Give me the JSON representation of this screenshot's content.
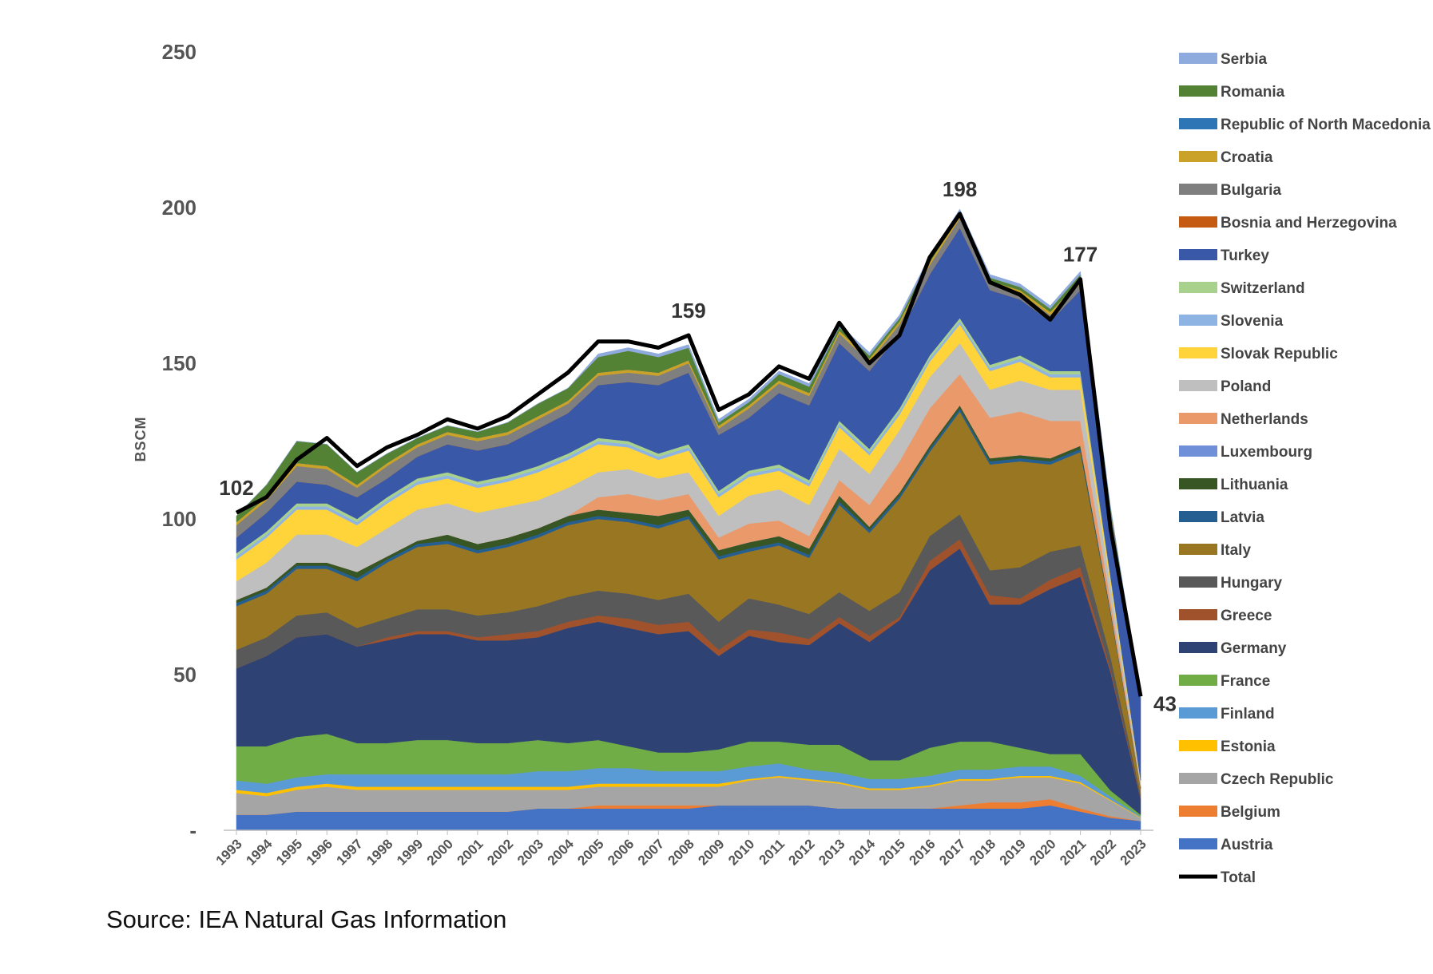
{
  "chart_data": {
    "type": "area",
    "stacked": true,
    "ylabel": "BSCM",
    "ylim": [
      0,
      250
    ],
    "yticks": [
      "-",
      "50",
      "100",
      "150",
      "200",
      "250"
    ],
    "grid": false,
    "legend_position": "right",
    "x": [
      "1993",
      "1994",
      "1995",
      "1996",
      "1997",
      "1998",
      "1999",
      "2000",
      "2001",
      "2002",
      "2003",
      "2004",
      "2005",
      "2006",
      "2007",
      "2008",
      "2009",
      "2010",
      "2011",
      "2012",
      "2013",
      "2014",
      "2015",
      "2016",
      "2017",
      "2018",
      "2019",
      "2020",
      "2021",
      "2022",
      "2023"
    ],
    "series": [
      {
        "name": "Austria",
        "color": "#4472C4",
        "values": [
          5,
          5,
          6,
          6,
          6,
          6,
          6,
          6,
          6,
          6,
          7,
          7,
          7,
          7,
          7,
          7,
          8,
          8,
          8,
          8,
          7,
          7,
          7,
          7,
          7,
          7,
          7,
          8,
          6,
          4,
          3
        ]
      },
      {
        "name": "Belgium",
        "color": "#ED7D31",
        "values": [
          0,
          0,
          0,
          0,
          0,
          0,
          0,
          0,
          0,
          0,
          0,
          0,
          1,
          1,
          1,
          1,
          0,
          0,
          0,
          0,
          0,
          0,
          0,
          0,
          1,
          2,
          2,
          2,
          1,
          0.5,
          0
        ]
      },
      {
        "name": "Czech Republic",
        "color": "#A5A5A5",
        "values": [
          7,
          6,
          7,
          8,
          7,
          7,
          7,
          7,
          7,
          7,
          6,
          6,
          6,
          6,
          6,
          6,
          6,
          8,
          9,
          8,
          8,
          6,
          6,
          7,
          8,
          7,
          8,
          7,
          8,
          5,
          1
        ]
      },
      {
        "name": "Estonia",
        "color": "#FFC000",
        "values": [
          1,
          1,
          1,
          1,
          1,
          1,
          1,
          1,
          1,
          1,
          1,
          1,
          1,
          1,
          1,
          1,
          1,
          0.5,
          0.5,
          0.5,
          0.5,
          0.5,
          0.5,
          0.5,
          0.5,
          0.5,
          0.5,
          0.5,
          0.5,
          0.3,
          0.2
        ]
      },
      {
        "name": "Finland",
        "color": "#5B9BD5",
        "values": [
          3,
          3,
          3,
          3,
          4,
          4,
          4,
          4,
          4,
          4,
          5,
          5,
          5,
          5,
          4,
          4,
          4,
          4,
          4,
          3,
          3,
          3,
          3,
          3,
          3,
          3,
          3,
          3,
          2,
          1,
          0.3
        ]
      },
      {
        "name": "France",
        "color": "#70AD47",
        "values": [
          11,
          12,
          13,
          13,
          10,
          10,
          11,
          11,
          10,
          10,
          10,
          9,
          9,
          7,
          6,
          6,
          7,
          8,
          7,
          8,
          9,
          6,
          6,
          9,
          9,
          9,
          6,
          4,
          7,
          2,
          0.5
        ]
      },
      {
        "name": "Germany",
        "color": "#2E4374",
        "values": [
          25,
          29,
          32,
          32,
          31,
          33,
          34,
          34,
          33,
          33,
          33,
          37,
          38,
          38,
          38,
          39,
          30,
          34,
          32,
          32,
          39,
          38,
          45,
          57,
          62,
          44,
          46,
          53,
          57,
          38,
          5
        ]
      },
      {
        "name": "Greece",
        "color": "#A0522D",
        "values": [
          0,
          0,
          0,
          0,
          0,
          1,
          1,
          1,
          1,
          2,
          2,
          2,
          2,
          3,
          3,
          3,
          2,
          2,
          3,
          2,
          2,
          2,
          1,
          3,
          3,
          3,
          2,
          3,
          3,
          1,
          0.5
        ]
      },
      {
        "name": "Hungary",
        "color": "#595959",
        "values": [
          6,
          6,
          7,
          7,
          6,
          6,
          7,
          7,
          7,
          7,
          8,
          8,
          8,
          8,
          8,
          9,
          9,
          10,
          9,
          8,
          8,
          8,
          8,
          8,
          8,
          8,
          10,
          9,
          7,
          4,
          1
        ]
      },
      {
        "name": "Italy",
        "color": "#997722",
        "values": [
          14,
          14,
          15,
          14,
          15,
          18,
          20,
          21,
          20,
          21,
          22,
          23,
          23,
          23,
          23,
          24,
          20,
          15,
          19,
          18,
          28,
          25,
          30,
          27,
          33,
          34,
          34,
          28,
          30,
          14,
          2
        ]
      },
      {
        "name": "Latvia",
        "color": "#255E91",
        "values": [
          1,
          1,
          1,
          1,
          1,
          1,
          1,
          1,
          1,
          1,
          1,
          1,
          1,
          1,
          1,
          1,
          1,
          1,
          1,
          1,
          1,
          1,
          1,
          1,
          1,
          1,
          1,
          1,
          1,
          0.5,
          0.2
        ]
      },
      {
        "name": "Lithuania",
        "color": "#375623",
        "values": [
          1,
          1,
          1,
          1,
          2,
          1,
          1,
          2,
          2,
          2,
          2,
          2,
          2,
          2,
          3,
          2,
          2,
          2,
          2,
          2,
          2,
          1,
          1,
          1,
          1,
          1,
          1,
          1,
          1,
          0.5,
          0.2
        ]
      },
      {
        "name": "Luxembourg",
        "color": "#6F8FD9",
        "values": [
          0,
          0,
          0,
          0,
          0,
          0,
          0,
          0,
          0,
          0,
          0,
          0,
          0,
          0,
          0,
          0,
          0,
          0,
          0,
          0,
          0,
          0,
          0,
          0,
          0,
          0,
          0,
          0,
          0,
          0,
          0
        ]
      },
      {
        "name": "Netherlands",
        "color": "#E9996A",
        "values": [
          0,
          0,
          0,
          0,
          0,
          0,
          0,
          0,
          0,
          0,
          0,
          0,
          4,
          6,
          5,
          5,
          4,
          6,
          5,
          4,
          5,
          7,
          10,
          12,
          10,
          13,
          14,
          12,
          8,
          3,
          0.5
        ]
      },
      {
        "name": "Poland",
        "color": "#BFBFBF",
        "values": [
          6,
          8,
          9,
          9,
          8,
          9,
          10,
          10,
          10,
          10,
          9,
          9,
          8,
          8,
          7,
          7,
          7,
          9,
          10,
          10,
          10,
          10,
          10,
          10,
          10,
          9,
          10,
          10,
          10,
          5,
          1
        ]
      },
      {
        "name": "Slovak Republic",
        "color": "#FFD43B",
        "values": [
          7,
          8,
          8,
          8,
          7,
          8,
          8,
          8,
          8,
          8,
          9,
          9,
          9,
          7,
          6,
          7,
          6,
          6,
          6,
          6,
          7,
          6,
          5,
          5,
          6,
          6,
          6,
          4,
          4,
          2,
          0.5
        ]
      },
      {
        "name": "Slovenia",
        "color": "#8EB4E3",
        "values": [
          1,
          1,
          1,
          1,
          1,
          1,
          1,
          1,
          1,
          1,
          1,
          1,
          1,
          1,
          1,
          1,
          1,
          1,
          1,
          1,
          1,
          1,
          1,
          1,
          1,
          1,
          1,
          1,
          1,
          0.3,
          0.1
        ]
      },
      {
        "name": "Switzerland",
        "color": "#A9D18E",
        "values": [
          1,
          1,
          1,
          1,
          1,
          1,
          1,
          1,
          1,
          1,
          1,
          1,
          1,
          1,
          1,
          1,
          1,
          1,
          1,
          1,
          1,
          1,
          1,
          1,
          1,
          1,
          1,
          1,
          1,
          0.5,
          0.1
        ]
      },
      {
        "name": "Turkey",
        "color": "#3A58A8",
        "values": [
          5,
          6,
          7,
          6,
          7,
          6,
          7,
          9,
          10,
          10,
          12,
          13,
          17,
          19,
          22,
          23,
          18,
          17,
          23,
          24,
          25,
          25,
          24,
          26,
          29,
          24,
          18,
          16,
          26,
          20,
          26
        ]
      },
      {
        "name": "Bosnia and Herzegovina",
        "color": "#C55A11",
        "values": [
          0,
          0,
          0,
          0,
          0,
          0,
          0,
          0,
          0,
          0,
          0,
          0,
          0,
          0,
          0,
          0,
          0,
          0,
          0,
          0,
          0,
          0,
          0,
          0,
          0,
          0,
          0,
          0,
          0,
          0,
          0
        ]
      },
      {
        "name": "Bulgaria",
        "color": "#7F7F7F",
        "values": [
          4,
          4,
          5,
          5,
          3,
          4,
          3,
          3,
          3,
          3,
          3,
          3,
          3,
          3,
          3,
          3,
          2,
          3,
          3,
          3,
          3,
          3,
          3,
          3,
          3,
          2,
          2,
          2,
          2,
          1,
          0.3
        ]
      },
      {
        "name": "Croatia",
        "color": "#C9A227",
        "values": [
          1,
          1,
          1,
          1,
          1,
          1,
          1,
          1,
          1,
          1,
          1,
          1,
          1,
          1,
          1,
          1,
          1,
          1,
          1,
          1,
          1,
          1,
          1,
          1,
          1,
          1,
          1,
          1,
          1,
          0.5,
          0.1
        ]
      },
      {
        "name": "Republic of North Macedonia",
        "color": "#2E75B6",
        "values": [
          0,
          0,
          0,
          0,
          0,
          0,
          0,
          0,
          0,
          0,
          0,
          0,
          0,
          0,
          0,
          0,
          0,
          0,
          0,
          0,
          0,
          0,
          0,
          0,
          0,
          0,
          0,
          0,
          0,
          0,
          0
        ]
      },
      {
        "name": "Romania",
        "color": "#548235",
        "values": [
          2,
          4,
          7,
          7,
          4,
          3,
          2,
          2,
          2,
          3,
          4,
          4,
          5,
          6,
          5,
          4,
          1,
          1,
          2,
          2,
          1,
          1,
          1,
          1,
          1,
          1,
          1,
          1,
          2,
          0.5,
          0.2
        ]
      },
      {
        "name": "Serbia",
        "color": "#8FAADC",
        "values": [
          0,
          0,
          0,
          0,
          0,
          0,
          0,
          0,
          0,
          0,
          0,
          0,
          1,
          1,
          1,
          1,
          1,
          1,
          1,
          1,
          1,
          1,
          1,
          1,
          1,
          1,
          1,
          1,
          1,
          0.4,
          0.2
        ]
      }
    ],
    "total": {
      "name": "Total",
      "color": "#000000",
      "values": [
        102,
        107,
        119,
        126,
        117,
        123,
        127,
        132,
        129,
        133,
        140,
        147,
        157,
        157,
        155,
        159,
        135,
        140,
        149,
        145,
        163,
        150,
        159,
        184,
        198,
        176,
        172,
        164,
        177,
        97,
        43
      ]
    },
    "annotations": [
      {
        "x": "1993",
        "label": "102"
      },
      {
        "x": "2008",
        "label": "159"
      },
      {
        "x": "2017",
        "label": "198"
      },
      {
        "x": "2021",
        "label": "177"
      },
      {
        "x": "2023",
        "label": "43"
      }
    ],
    "legend_order": [
      "Serbia",
      "Romania",
      "Republic of North Macedonia",
      "Croatia",
      "Bulgaria",
      "Bosnia and Herzegovina",
      "Turkey",
      "Switzerland",
      "Slovenia",
      "Slovak Republic",
      "Poland",
      "Netherlands",
      "Luxembourg",
      "Lithuania",
      "Latvia",
      "Italy",
      "Hungary",
      "Greece",
      "Germany",
      "France",
      "Finland",
      "Estonia",
      "Czech Republic",
      "Belgium",
      "Austria",
      "Total"
    ]
  },
  "source": "Source: IEA Natural Gas Information"
}
